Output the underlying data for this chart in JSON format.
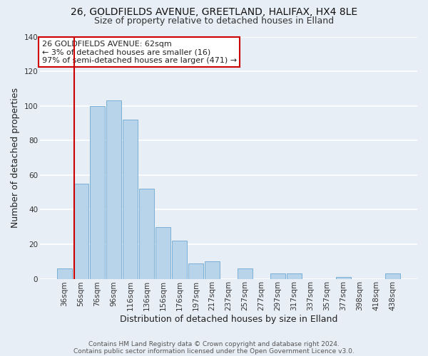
{
  "title": "26, GOLDFIELDS AVENUE, GREETLAND, HALIFAX, HX4 8LE",
  "subtitle": "Size of property relative to detached houses in Elland",
  "xlabel": "Distribution of detached houses by size in Elland",
  "ylabel": "Number of detached properties",
  "bar_labels": [
    "36sqm",
    "56sqm",
    "76sqm",
    "96sqm",
    "116sqm",
    "136sqm",
    "156sqm",
    "176sqm",
    "197sqm",
    "217sqm",
    "237sqm",
    "257sqm",
    "277sqm",
    "297sqm",
    "317sqm",
    "337sqm",
    "357sqm",
    "377sqm",
    "398sqm",
    "418sqm",
    "438sqm"
  ],
  "bar_values": [
    6,
    55,
    100,
    103,
    92,
    52,
    30,
    22,
    9,
    10,
    0,
    6,
    0,
    3,
    3,
    0,
    0,
    1,
    0,
    0,
    3
  ],
  "bar_color": "#b8d4ea",
  "bar_edge_color": "#7aafd4",
  "ylim": [
    0,
    140
  ],
  "yticks": [
    0,
    20,
    40,
    60,
    80,
    100,
    120,
    140
  ],
  "vline_x": 1.575,
  "vline_color": "#cc0000",
  "annotation_text": "26 GOLDFIELDS AVENUE: 62sqm\n← 3% of detached houses are smaller (16)\n97% of semi-detached houses are larger (471) →",
  "annotation_box_color": "#ffffff",
  "annotation_box_edge": "#cc0000",
  "footer1": "Contains HM Land Registry data © Crown copyright and database right 2024.",
  "footer2": "Contains public sector information licensed under the Open Government Licence v3.0.",
  "bg_color": "#e8eef5",
  "plot_bg_color": "#e8eef5",
  "grid_color": "#ffffff",
  "title_fontsize": 10,
  "subtitle_fontsize": 9,
  "axis_label_fontsize": 9,
  "tick_fontsize": 7.5,
  "footer_fontsize": 6.5
}
